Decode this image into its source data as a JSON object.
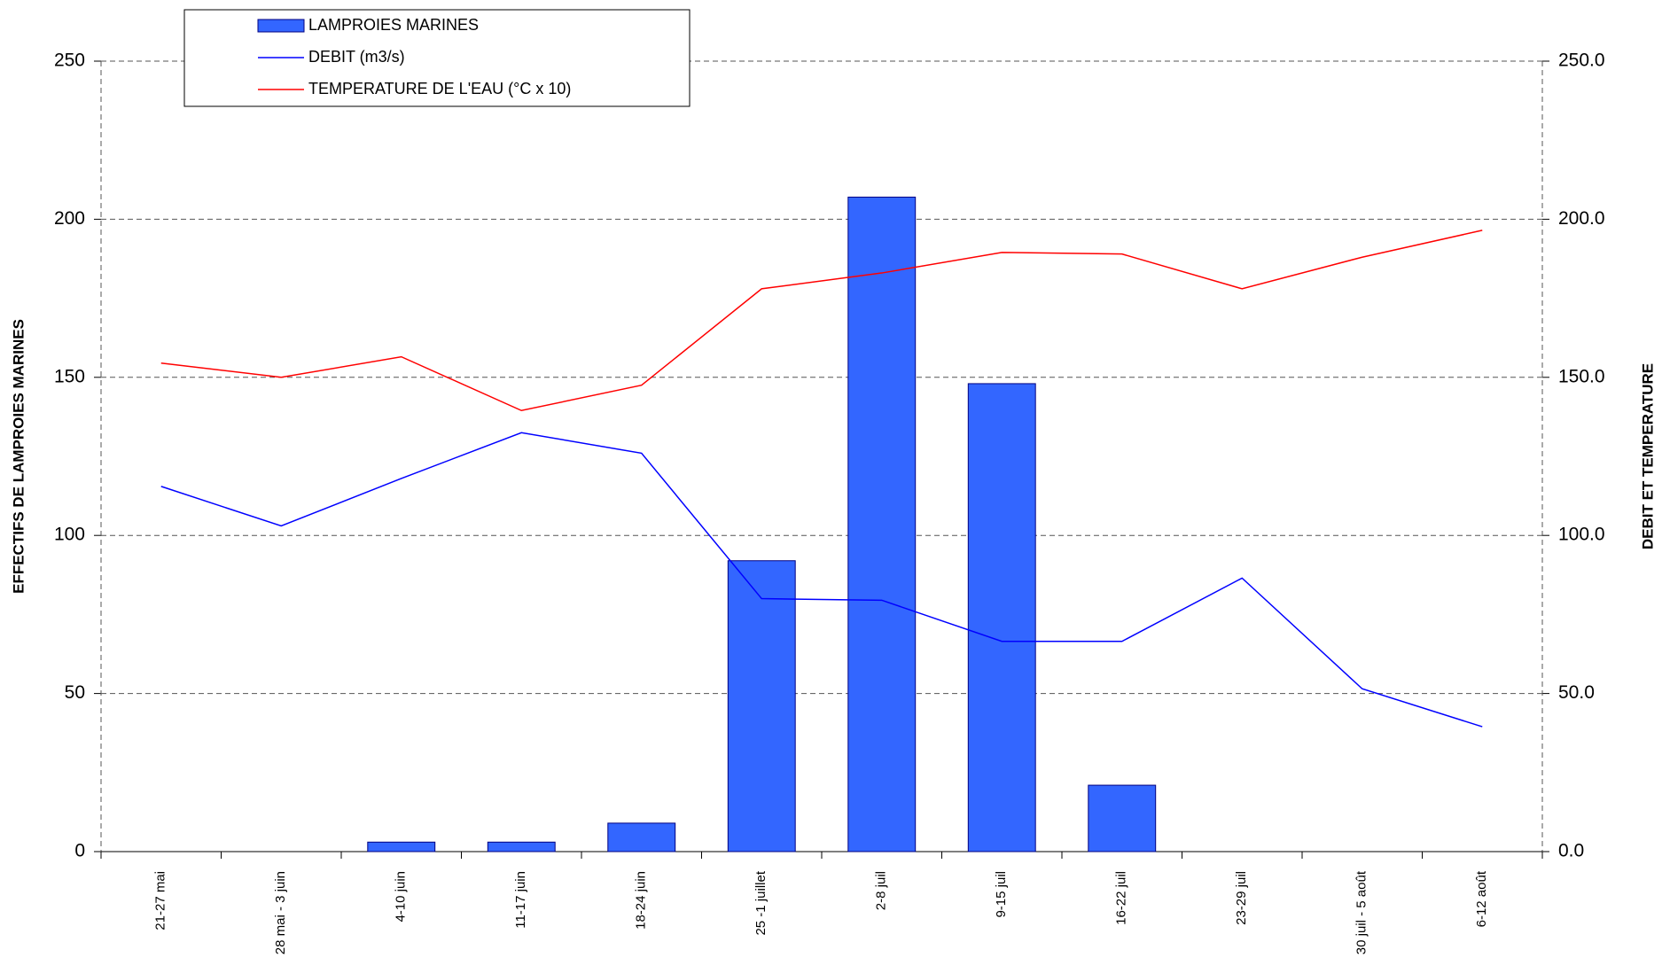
{
  "chart_data": {
    "type": "bar_line",
    "categories": [
      "21-27 mai",
      "28 mai - 3 juin",
      "4-10 juin",
      "11-17 juin",
      "18-24 juin",
      "25 -1 juillet",
      "2-8 juil",
      "9-15 juil",
      "16-22 juil",
      "23-29 juil",
      "30 juil - 5 août",
      "6-12 août"
    ],
    "series": [
      {
        "name": "LAMPROIES MARINES",
        "type": "bar",
        "color": "#3366ff",
        "values": [
          0,
          0,
          3,
          3,
          9,
          92,
          207,
          148,
          21,
          0,
          0,
          0
        ]
      },
      {
        "name": "DEBIT (m3/s)",
        "type": "line",
        "axis": "y2",
        "color": "#0000ff",
        "values": [
          115.5,
          103,
          118,
          132.5,
          126,
          80,
          79.5,
          66.5,
          66.5,
          86.5,
          51.5,
          39.5
        ]
      },
      {
        "name": "TEMPERATURE DE L'EAU (°C x 10)",
        "type": "line",
        "axis": "y2",
        "color": "#ff0000",
        "values": [
          154.5,
          150,
          156.5,
          139.5,
          147.5,
          178,
          183,
          189.5,
          189,
          178,
          188,
          196.5
        ]
      }
    ],
    "ylabel": "EFFECTIFS DE LAMPROIES MARINES",
    "y2label": "DEBIT ET TEMPERATURE",
    "ylim": [
      0,
      250
    ],
    "yticks": [
      0,
      50,
      100,
      150,
      200,
      250
    ],
    "y2lim": [
      0,
      250
    ],
    "y2ticks": [
      {
        "value": 0,
        "label": "0.0"
      },
      {
        "value": 50,
        "label": "50.0"
      },
      {
        "value": 100,
        "label": "100.0"
      },
      {
        "value": 150,
        "label": "150.0"
      },
      {
        "value": 200,
        "label": "200.0"
      },
      {
        "value": 250,
        "label": "250.0"
      }
    ],
    "grid": true,
    "legend": "top-left"
  }
}
